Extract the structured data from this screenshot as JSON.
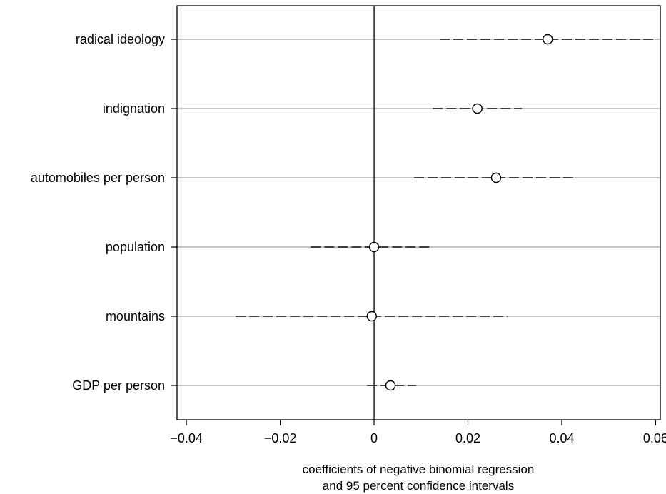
{
  "chart_data": {
    "type": "scatter",
    "subtype": "coefficient-plot",
    "title": "",
    "xlabel_lines": [
      "coefficients of negative binomial regression",
      "and 95 percent confidence intervals"
    ],
    "ylabel": "",
    "xlim": [
      -0.042,
      0.061
    ],
    "x_ticks": [
      -0.04,
      -0.02,
      0,
      0.02,
      0.04,
      0.06
    ],
    "x_tick_labels": [
      "−0.04",
      "−0.02",
      "0",
      "0.02",
      "0.04",
      "0.06"
    ],
    "reference_line_x": 0,
    "grid": "horizontal lines at each category",
    "legend": "none",
    "categories": [
      "radical ideology",
      "indignation",
      "automobiles per person",
      "population",
      "mountains",
      "GDP per person"
    ],
    "estimates": [
      0.037,
      0.022,
      0.026,
      0.0,
      -0.0005,
      0.0035
    ],
    "ci_lower": [
      0.014,
      0.0125,
      0.0085,
      -0.0135,
      -0.0295,
      -0.0015
    ],
    "ci_upper": [
      0.0595,
      0.0315,
      0.043,
      0.0125,
      0.0285,
      0.009
    ],
    "colors": {
      "axis": "#000000",
      "grid": "#8c8c8c",
      "ci": "#000000",
      "marker": "#000000"
    }
  }
}
